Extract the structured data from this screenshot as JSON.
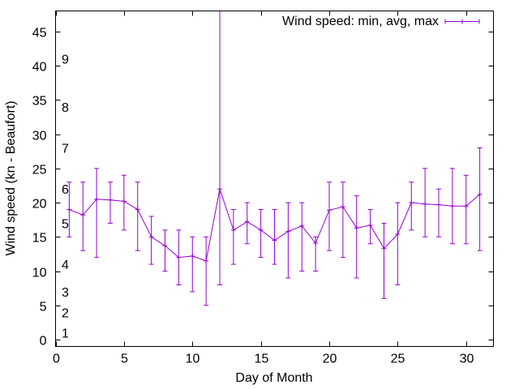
{
  "chart_data": {
    "type": "line",
    "title": "",
    "xlabel": "Day of Month",
    "ylabel": "Wind speed (kn - Beaufort)",
    "xlim": [
      0,
      32
    ],
    "ylim": [
      -1,
      48
    ],
    "xticks": [
      0,
      5,
      10,
      15,
      20,
      25,
      30
    ],
    "yticks": [
      0,
      5,
      10,
      15,
      20,
      25,
      30,
      35,
      40,
      45
    ],
    "grid": false,
    "legend_position": "top-right",
    "series": [
      {
        "name": "Wind speed: min, avg, max",
        "color": "#9400d3",
        "x": [
          1,
          2,
          3,
          4,
          5,
          6,
          7,
          8,
          9,
          10,
          11,
          12,
          13,
          14,
          15,
          16,
          17,
          18,
          19,
          20,
          21,
          22,
          23,
          24,
          25,
          26,
          27,
          28,
          29,
          30,
          31
        ],
        "avg": [
          19,
          18.2,
          20.5,
          20.4,
          20.2,
          19,
          15,
          13.7,
          12,
          12.2,
          11.5,
          22,
          16,
          17.2,
          16,
          14.5,
          15.8,
          16.6,
          14.1,
          18.9,
          19.4,
          16.3,
          16.7,
          13.3,
          15.4,
          20,
          19.8,
          19.7,
          19.5,
          19.5,
          21.2
        ],
        "min": [
          15,
          13,
          12,
          17,
          16,
          13,
          11,
          10,
          8,
          7,
          5,
          8,
          11,
          14,
          12,
          11,
          9,
          10,
          10,
          13,
          12,
          9,
          14,
          6,
          8,
          16,
          15,
          15,
          14,
          14,
          13
        ],
        "max": [
          23,
          23,
          25,
          23,
          24,
          23,
          18,
          16,
          16,
          15,
          15,
          48,
          19,
          20,
          19,
          19,
          20,
          20,
          15,
          23,
          23,
          21,
          19,
          17,
          20,
          23,
          25,
          22,
          25,
          24,
          28
        ]
      }
    ],
    "beaufort_scale": [
      {
        "label": "1",
        "y": 1
      },
      {
        "label": "2",
        "y": 4
      },
      {
        "label": "3",
        "y": 7
      },
      {
        "label": "4",
        "y": 11
      },
      {
        "label": "5",
        "y": 17
      },
      {
        "label": "6",
        "y": 22
      },
      {
        "label": "7",
        "y": 28
      },
      {
        "label": "8",
        "y": 34
      },
      {
        "label": "9",
        "y": 41
      }
    ]
  }
}
